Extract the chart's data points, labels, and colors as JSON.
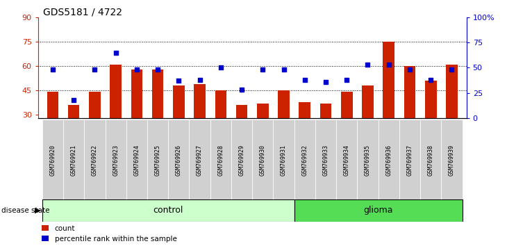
{
  "title": "GDS5181 / 4722",
  "samples": [
    "GSM769920",
    "GSM769921",
    "GSM769922",
    "GSM769923",
    "GSM769924",
    "GSM769925",
    "GSM769926",
    "GSM769927",
    "GSM769928",
    "GSM769929",
    "GSM769930",
    "GSM769931",
    "GSM769932",
    "GSM769933",
    "GSM769934",
    "GSM769935",
    "GSM769936",
    "GSM769937",
    "GSM769938",
    "GSM769939"
  ],
  "bar_values": [
    44,
    36,
    44,
    61,
    58,
    58,
    48,
    49,
    45,
    36,
    37,
    45,
    38,
    37,
    44,
    48,
    75,
    60,
    51,
    61
  ],
  "dot_values_pct": [
    48,
    18,
    48,
    65,
    48,
    48,
    37,
    38,
    50,
    28,
    48,
    48,
    38,
    36,
    38,
    53,
    53,
    48,
    38,
    48
  ],
  "control_count": 12,
  "glioma_count": 8,
  "ylim_left": [
    28,
    90
  ],
  "ylim_right": [
    0,
    100
  ],
  "yticks_left": [
    30,
    45,
    60,
    75,
    90
  ],
  "yticks_right": [
    0,
    25,
    50,
    75,
    100
  ],
  "bar_color": "#cc2200",
  "dot_color": "#0000cc",
  "control_color": "#ccffcc",
  "glioma_color": "#55dd55",
  "ticklabel_bg": "#d0d0d0",
  "label_count": "count",
  "label_pct": "percentile rank within the sample",
  "disease_state_label": "disease state",
  "control_label": "control",
  "glioma_label": "glioma"
}
